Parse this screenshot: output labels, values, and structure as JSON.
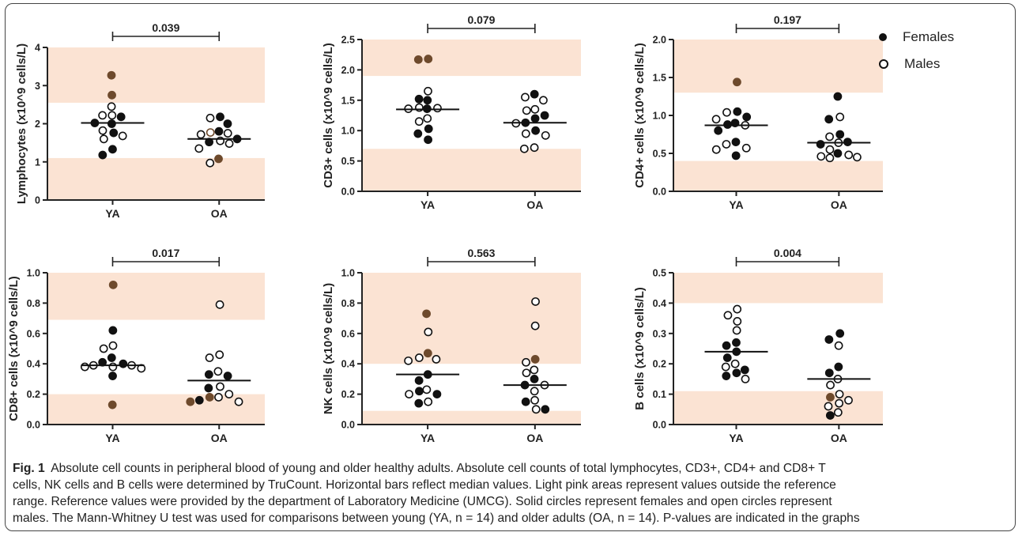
{
  "legend": {
    "entries": [
      {
        "label": "Females",
        "marker": "solid"
      },
      {
        "label": "Males",
        "marker": "open"
      }
    ]
  },
  "caption": {
    "label": "Fig. 1",
    "lines": [
      "Absolute cell counts in peripheral blood of young and older healthy adults. Absolute cell counts of total lymphocytes, CD3+, CD4+ and CD8+ T",
      "cells, NK cells and B cells were determined by TruCount. Horizontal bars reflect median values. Light pink areas represent values outside the reference",
      "range. Reference values were provided by the department of Laboratory Medicine (UMCG). Solid circles represent females and open circles represent",
      "males. The Mann-Whitney U test was used for comparisons between young (YA, n = 14) and older adults (OA, n = 14). P-values are indicated in the graphs"
    ]
  },
  "colors": {
    "reference_shade": "#fbe3d3",
    "female_fill": "#111111",
    "female_fill_alt": "#6e4a2c",
    "male_fill": "#ffffff",
    "axis": "#222222"
  },
  "chart_data": [
    {
      "type": "scatter",
      "ylabel": "Lymphocytes (x10^9 cells/L)",
      "categories": [
        "YA",
        "OA"
      ],
      "ylim": [
        0,
        4
      ],
      "yticks": [
        "0",
        "1",
        "2",
        "3",
        "4"
      ],
      "pvalue": "0.039",
      "reference_range": [
        1.1,
        2.55
      ],
      "medians": [
        2.02,
        1.6
      ],
      "points": {
        "YA": [
          {
            "y": 3.27,
            "sex": "F",
            "tone": "alt"
          },
          {
            "y": 2.75,
            "sex": "F",
            "tone": "alt"
          },
          {
            "y": 2.45,
            "sex": "M"
          },
          {
            "y": 2.22,
            "sex": "M"
          },
          {
            "y": 2.22,
            "sex": "M"
          },
          {
            "y": 2.18,
            "sex": "F"
          },
          {
            "y": 2.02,
            "sex": "F"
          },
          {
            "y": 2.0,
            "sex": "F"
          },
          {
            "y": 1.82,
            "sex": "M"
          },
          {
            "y": 1.76,
            "sex": "F"
          },
          {
            "y": 1.68,
            "sex": "M"
          },
          {
            "y": 1.6,
            "sex": "M"
          },
          {
            "y": 1.33,
            "sex": "F"
          },
          {
            "y": 1.18,
            "sex": "F"
          }
        ],
        "OA": [
          {
            "y": 2.18,
            "sex": "F"
          },
          {
            "y": 2.15,
            "sex": "M"
          },
          {
            "y": 2.0,
            "sex": "F"
          },
          {
            "y": 1.8,
            "sex": "F"
          },
          {
            "y": 1.77,
            "sex": "M",
            "tone": "alt"
          },
          {
            "y": 1.75,
            "sex": "M"
          },
          {
            "y": 1.72,
            "sex": "M"
          },
          {
            "y": 1.6,
            "sex": "F"
          },
          {
            "y": 1.55,
            "sex": "M"
          },
          {
            "y": 1.52,
            "sex": "F"
          },
          {
            "y": 1.48,
            "sex": "M"
          },
          {
            "y": 1.35,
            "sex": "M"
          },
          {
            "y": 1.08,
            "sex": "F",
            "tone": "alt"
          },
          {
            "y": 0.97,
            "sex": "M"
          }
        ]
      }
    },
    {
      "type": "scatter",
      "ylabel": "CD3+ cells (x10^9 cells/L)",
      "categories": [
        "YA",
        "OA"
      ],
      "ylim": [
        0,
        2.5
      ],
      "yticks": [
        "0.0",
        "0.5",
        "1.0",
        "1.5",
        "2.0",
        "2.5"
      ],
      "pvalue": "0.079",
      "reference_range": [
        0.7,
        1.9
      ],
      "medians": [
        1.35,
        1.13
      ],
      "points": {
        "YA": [
          {
            "y": 2.18,
            "sex": "F",
            "tone": "alt"
          },
          {
            "y": 2.17,
            "sex": "F",
            "tone": "alt"
          },
          {
            "y": 1.65,
            "sex": "M"
          },
          {
            "y": 1.52,
            "sex": "F"
          },
          {
            "y": 1.5,
            "sex": "F"
          },
          {
            "y": 1.38,
            "sex": "M"
          },
          {
            "y": 1.37,
            "sex": "M"
          },
          {
            "y": 1.36,
            "sex": "F"
          },
          {
            "y": 1.36,
            "sex": "M"
          },
          {
            "y": 1.2,
            "sex": "M"
          },
          {
            "y": 1.15,
            "sex": "M"
          },
          {
            "y": 1.03,
            "sex": "F"
          },
          {
            "y": 0.95,
            "sex": "F"
          },
          {
            "y": 0.85,
            "sex": "F"
          }
        ],
        "OA": [
          {
            "y": 1.6,
            "sex": "F"
          },
          {
            "y": 1.55,
            "sex": "M"
          },
          {
            "y": 1.5,
            "sex": "M"
          },
          {
            "y": 1.35,
            "sex": "M"
          },
          {
            "y": 1.33,
            "sex": "M"
          },
          {
            "y": 1.25,
            "sex": "F"
          },
          {
            "y": 1.2,
            "sex": "F"
          },
          {
            "y": 1.13,
            "sex": "F"
          },
          {
            "y": 1.12,
            "sex": "M"
          },
          {
            "y": 1.0,
            "sex": "F"
          },
          {
            "y": 0.95,
            "sex": "M"
          },
          {
            "y": 0.92,
            "sex": "M"
          },
          {
            "y": 0.72,
            "sex": "M"
          },
          {
            "y": 0.7,
            "sex": "M"
          }
        ]
      }
    },
    {
      "type": "scatter",
      "ylabel": "CD4+ cells (x10^9 cells/L)",
      "categories": [
        "YA",
        "OA"
      ],
      "ylim": [
        0,
        2.0
      ],
      "yticks": [
        "0.0",
        "0.5",
        "1.0",
        "1.5",
        "2.0"
      ],
      "pvalue": "0.197",
      "reference_range": [
        0.4,
        1.3
      ],
      "medians": [
        0.87,
        0.64
      ],
      "points": {
        "YA": [
          {
            "y": 1.44,
            "sex": "F",
            "tone": "alt"
          },
          {
            "y": 1.05,
            "sex": "F"
          },
          {
            "y": 1.04,
            "sex": "M"
          },
          {
            "y": 0.98,
            "sex": "F"
          },
          {
            "y": 0.95,
            "sex": "M"
          },
          {
            "y": 0.9,
            "sex": "F"
          },
          {
            "y": 0.88,
            "sex": "F"
          },
          {
            "y": 0.87,
            "sex": "M"
          },
          {
            "y": 0.8,
            "sex": "F"
          },
          {
            "y": 0.65,
            "sex": "F"
          },
          {
            "y": 0.62,
            "sex": "M"
          },
          {
            "y": 0.57,
            "sex": "M"
          },
          {
            "y": 0.55,
            "sex": "M"
          },
          {
            "y": 0.47,
            "sex": "F"
          }
        ],
        "OA": [
          {
            "y": 1.25,
            "sex": "F"
          },
          {
            "y": 0.98,
            "sex": "M"
          },
          {
            "y": 0.95,
            "sex": "F"
          },
          {
            "y": 0.75,
            "sex": "F"
          },
          {
            "y": 0.72,
            "sex": "M"
          },
          {
            "y": 0.65,
            "sex": "F"
          },
          {
            "y": 0.64,
            "sex": "M"
          },
          {
            "y": 0.62,
            "sex": "F"
          },
          {
            "y": 0.55,
            "sex": "M"
          },
          {
            "y": 0.5,
            "sex": "F"
          },
          {
            "y": 0.48,
            "sex": "M"
          },
          {
            "y": 0.46,
            "sex": "M"
          },
          {
            "y": 0.45,
            "sex": "M"
          },
          {
            "y": 0.44,
            "sex": "M"
          }
        ]
      }
    },
    {
      "type": "scatter",
      "ylabel": "CD8+ cells (x10^9 cells/L)",
      "categories": [
        "YA",
        "OA"
      ],
      "ylim": [
        0,
        1.0
      ],
      "yticks": [
        "0.0",
        "0.2",
        "0.4",
        "0.6",
        "0.8",
        "1.0"
      ],
      "pvalue": "0.017",
      "reference_range": [
        0.2,
        0.69
      ],
      "medians": [
        0.39,
        0.29
      ],
      "points": {
        "YA": [
          {
            "y": 0.92,
            "sex": "F",
            "tone": "alt"
          },
          {
            "y": 0.62,
            "sex": "F"
          },
          {
            "y": 0.52,
            "sex": "M"
          },
          {
            "y": 0.5,
            "sex": "M"
          },
          {
            "y": 0.44,
            "sex": "F"
          },
          {
            "y": 0.41,
            "sex": "F"
          },
          {
            "y": 0.4,
            "sex": "F"
          },
          {
            "y": 0.39,
            "sex": "M"
          },
          {
            "y": 0.39,
            "sex": "M"
          },
          {
            "y": 0.38,
            "sex": "M"
          },
          {
            "y": 0.38,
            "sex": "M"
          },
          {
            "y": 0.37,
            "sex": "M"
          },
          {
            "y": 0.32,
            "sex": "F"
          },
          {
            "y": 0.13,
            "sex": "F",
            "tone": "alt"
          }
        ],
        "OA": [
          {
            "y": 0.79,
            "sex": "M"
          },
          {
            "y": 0.46,
            "sex": "M"
          },
          {
            "y": 0.44,
            "sex": "M"
          },
          {
            "y": 0.35,
            "sex": "M"
          },
          {
            "y": 0.33,
            "sex": "F"
          },
          {
            "y": 0.32,
            "sex": "F"
          },
          {
            "y": 0.25,
            "sex": "M"
          },
          {
            "y": 0.24,
            "sex": "F"
          },
          {
            "y": 0.2,
            "sex": "M"
          },
          {
            "y": 0.18,
            "sex": "M"
          },
          {
            "y": 0.18,
            "sex": "F",
            "tone": "alt"
          },
          {
            "y": 0.16,
            "sex": "F"
          },
          {
            "y": 0.15,
            "sex": "M"
          },
          {
            "y": 0.15,
            "sex": "F",
            "tone": "alt"
          }
        ]
      }
    },
    {
      "type": "scatter",
      "ylabel": "NK cells (x10^9 cells/L)",
      "categories": [
        "YA",
        "OA"
      ],
      "ylim": [
        0,
        1.0
      ],
      "yticks": [
        "0.0",
        "0.2",
        "0.4",
        "0.6",
        "0.8",
        "1.0"
      ],
      "pvalue": "0.563",
      "reference_range": [
        0.09,
        0.4
      ],
      "medians": [
        0.33,
        0.26
      ],
      "points": {
        "YA": [
          {
            "y": 0.73,
            "sex": "F",
            "tone": "alt"
          },
          {
            "y": 0.61,
            "sex": "M"
          },
          {
            "y": 0.47,
            "sex": "F",
            "tone": "alt"
          },
          {
            "y": 0.44,
            "sex": "M"
          },
          {
            "y": 0.43,
            "sex": "M"
          },
          {
            "y": 0.42,
            "sex": "M"
          },
          {
            "y": 0.33,
            "sex": "F"
          },
          {
            "y": 0.29,
            "sex": "F"
          },
          {
            "y": 0.23,
            "sex": "M"
          },
          {
            "y": 0.22,
            "sex": "F"
          },
          {
            "y": 0.2,
            "sex": "F"
          },
          {
            "y": 0.2,
            "sex": "M"
          },
          {
            "y": 0.15,
            "sex": "M"
          },
          {
            "y": 0.14,
            "sex": "F"
          }
        ],
        "OA": [
          {
            "y": 0.81,
            "sex": "M"
          },
          {
            "y": 0.65,
            "sex": "M"
          },
          {
            "y": 0.43,
            "sex": "F",
            "tone": "alt"
          },
          {
            "y": 0.41,
            "sex": "M"
          },
          {
            "y": 0.36,
            "sex": "M"
          },
          {
            "y": 0.34,
            "sex": "M"
          },
          {
            "y": 0.3,
            "sex": "F"
          },
          {
            "y": 0.26,
            "sex": "F"
          },
          {
            "y": 0.26,
            "sex": "M"
          },
          {
            "y": 0.22,
            "sex": "M"
          },
          {
            "y": 0.16,
            "sex": "M"
          },
          {
            "y": 0.15,
            "sex": "F"
          },
          {
            "y": 0.1,
            "sex": "M"
          },
          {
            "y": 0.1,
            "sex": "F"
          }
        ]
      }
    },
    {
      "type": "scatter",
      "ylabel": "B cells (x10^9 cells/L)",
      "categories": [
        "YA",
        "OA"
      ],
      "ylim": [
        0,
        0.5
      ],
      "yticks": [
        "0.0",
        "0.1",
        "0.2",
        "0.3",
        "0.4",
        "0.5"
      ],
      "pvalue": "0.004",
      "reference_range": [
        0.11,
        0.4
      ],
      "medians": [
        0.24,
        0.15
      ],
      "points": {
        "YA": [
          {
            "y": 0.38,
            "sex": "M"
          },
          {
            "y": 0.36,
            "sex": "M"
          },
          {
            "y": 0.34,
            "sex": "M"
          },
          {
            "y": 0.31,
            "sex": "M"
          },
          {
            "y": 0.27,
            "sex": "F"
          },
          {
            "y": 0.26,
            "sex": "F"
          },
          {
            "y": 0.24,
            "sex": "F"
          },
          {
            "y": 0.22,
            "sex": "F"
          },
          {
            "y": 0.2,
            "sex": "M"
          },
          {
            "y": 0.19,
            "sex": "M"
          },
          {
            "y": 0.18,
            "sex": "F"
          },
          {
            "y": 0.17,
            "sex": "F"
          },
          {
            "y": 0.16,
            "sex": "F"
          },
          {
            "y": 0.15,
            "sex": "M"
          }
        ],
        "OA": [
          {
            "y": 0.3,
            "sex": "F"
          },
          {
            "y": 0.28,
            "sex": "F"
          },
          {
            "y": 0.26,
            "sex": "M"
          },
          {
            "y": 0.19,
            "sex": "F"
          },
          {
            "y": 0.17,
            "sex": "F"
          },
          {
            "y": 0.15,
            "sex": "M"
          },
          {
            "y": 0.13,
            "sex": "M"
          },
          {
            "y": 0.1,
            "sex": "M"
          },
          {
            "y": 0.09,
            "sex": "F",
            "tone": "alt"
          },
          {
            "y": 0.08,
            "sex": "M"
          },
          {
            "y": 0.06,
            "sex": "M"
          },
          {
            "y": 0.04,
            "sex": "M"
          },
          {
            "y": 0.03,
            "sex": "F"
          },
          {
            "y": 0.07,
            "sex": "M"
          }
        ]
      }
    }
  ]
}
